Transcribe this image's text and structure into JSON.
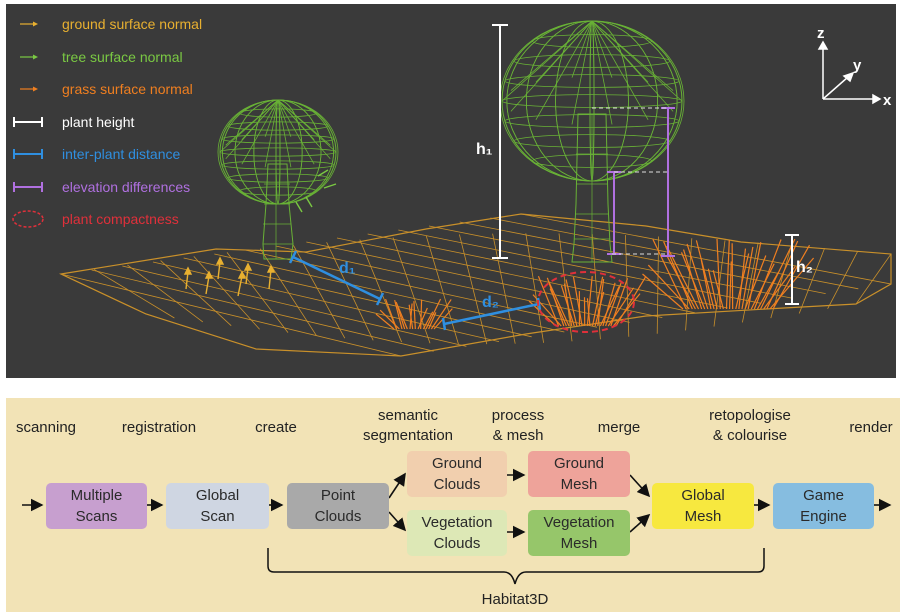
{
  "scene": {
    "legend": [
      {
        "label": "ground surface normal",
        "color": "#e8b030",
        "symbol": "arrow-small"
      },
      {
        "label": "tree surface normal",
        "color": "#7ac943",
        "symbol": "arrow-small"
      },
      {
        "label": "grass surface normal",
        "color": "#f07f20",
        "symbol": "arrow-small"
      },
      {
        "label": "plant height",
        "color": "#ffffff",
        "symbol": "double-bar"
      },
      {
        "label": "inter-plant distance",
        "color": "#2f8fe0",
        "symbol": "double-bar"
      },
      {
        "label": "elevation differences",
        "color": "#b070e0",
        "symbol": "double-bar"
      },
      {
        "label": "plant compactness",
        "color": "#e0303a",
        "symbol": "dashed-ellipse"
      }
    ],
    "labels": {
      "h1": "h₁",
      "h2": "h₂",
      "d1": "d₁",
      "d2": "d₂"
    },
    "axes": {
      "z": "z",
      "y": "y",
      "x": "x"
    }
  },
  "pipeline": {
    "stages": [
      "scanning",
      "registration",
      "create",
      "semantic\nsegmentation",
      "process\n& mesh",
      "merge",
      "retopologise\n& colourise",
      "render"
    ],
    "boxes": [
      {
        "id": "multiple-scans",
        "label": "Multiple\nScans",
        "color": "#c79fcf"
      },
      {
        "id": "global-scan",
        "label": "Global\nScan",
        "color": "#cfd6e2"
      },
      {
        "id": "point-clouds",
        "label": "Point\nClouds",
        "color": "#a9a9a9"
      },
      {
        "id": "ground-clouds",
        "label": "Ground\nClouds",
        "color": "#f1cfae"
      },
      {
        "id": "vegetation-clouds",
        "label": "Vegetation\nClouds",
        "color": "#dde8b6"
      },
      {
        "id": "ground-mesh",
        "label": "Ground\nMesh",
        "color": "#eea39a"
      },
      {
        "id": "vegetation-mesh",
        "label": "Vegetation\nMesh",
        "color": "#96c66a"
      },
      {
        "id": "global-mesh",
        "label": "Global\nMesh",
        "color": "#f7e83f"
      },
      {
        "id": "game-engine",
        "label": "Game\nEngine",
        "color": "#86bde0"
      }
    ],
    "bracket_label": "Habitat3D"
  }
}
